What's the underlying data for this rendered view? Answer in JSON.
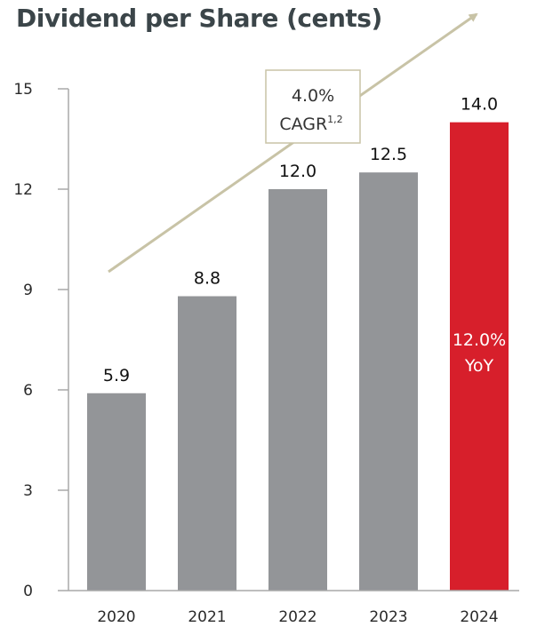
{
  "chart_data": {
    "type": "bar",
    "title": "Dividend per Share (cents)",
    "categories": [
      "2020",
      "2021",
      "2022",
      "2023",
      "2024"
    ],
    "values": [
      5.9,
      8.8,
      12.0,
      12.5,
      14.0
    ],
    "value_labels": [
      "5.9",
      "8.8",
      "12.0",
      "12.5",
      "14.0"
    ],
    "ylim": [
      0,
      15
    ],
    "yticks": [
      "0",
      "3",
      "6",
      "9",
      "12",
      "15"
    ],
    "ytick_values": [
      0,
      3,
      6,
      9,
      12,
      15
    ],
    "grid": false,
    "highlight_index": 4,
    "highlight_label_line1": "12.0%",
    "highlight_label_line2": "YoY",
    "annotation": {
      "line1": "4.0%",
      "line2_main": "CAGR",
      "line2_sup": "1,2"
    },
    "colors": {
      "bar": "#939598",
      "highlight": "#d71f2b",
      "arrow": "#c8c3a6",
      "axis": "#a8a8a8"
    }
  }
}
